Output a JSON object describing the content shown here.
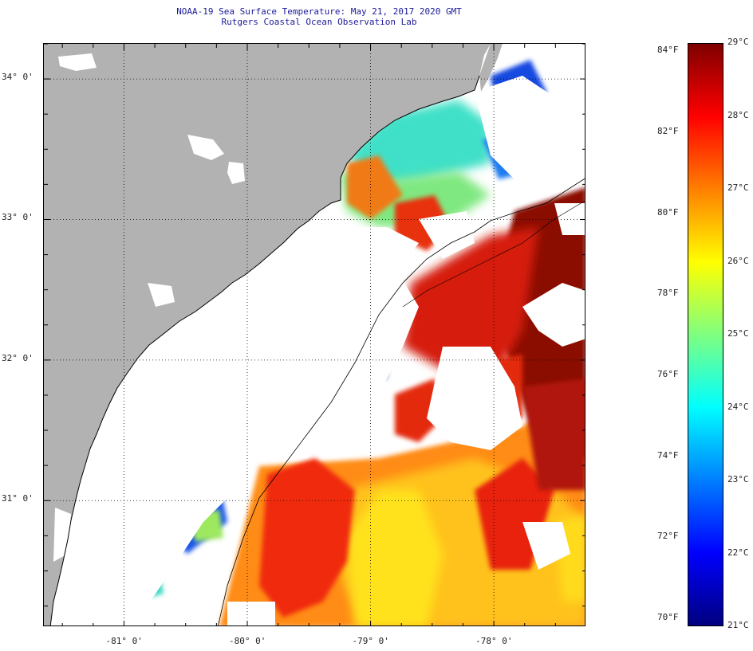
{
  "title": {
    "line1": "NOAA-19 Sea Surface Temperature:  May 21, 2017 2020 GMT",
    "line2": "Rutgers Coastal Ocean Observation Lab"
  },
  "map": {
    "lon_range": [
      -81.65,
      -77.25
    ],
    "lat_range": [
      30.1,
      34.25
    ],
    "lon_ticks": [
      {
        "value": -81,
        "label": "-81° 0'"
      },
      {
        "value": -80,
        "label": "-80° 0'"
      },
      {
        "value": -79,
        "label": "-79° 0'"
      },
      {
        "value": -78,
        "label": "-78° 0'"
      }
    ],
    "lat_ticks": [
      {
        "value": 34,
        "label": "34° 0'"
      },
      {
        "value": 33,
        "label": "33° 0'"
      },
      {
        "value": 32,
        "label": "32° 0'"
      },
      {
        "value": 31,
        "label": "31° 0'"
      }
    ],
    "land_color": "#b2b2b2",
    "cloud_color": "#ffffff"
  },
  "colorbar": {
    "celsius_range": [
      21,
      29
    ],
    "fahrenheit_labels": [
      "84°F",
      "82°F",
      "80°F",
      "78°F",
      "76°F",
      "74°F",
      "72°F",
      "70°F"
    ],
    "celsius_labels": [
      "29°C",
      "28°C",
      "27°C",
      "26°C",
      "25°C",
      "24°C",
      "23°C",
      "22°C",
      "21°C"
    ],
    "colors": [
      "#00007f",
      "#0000ff",
      "#007fff",
      "#00ffff",
      "#7fff7f",
      "#ffff00",
      "#ff7f00",
      "#ff0000",
      "#7f0000"
    ]
  }
}
